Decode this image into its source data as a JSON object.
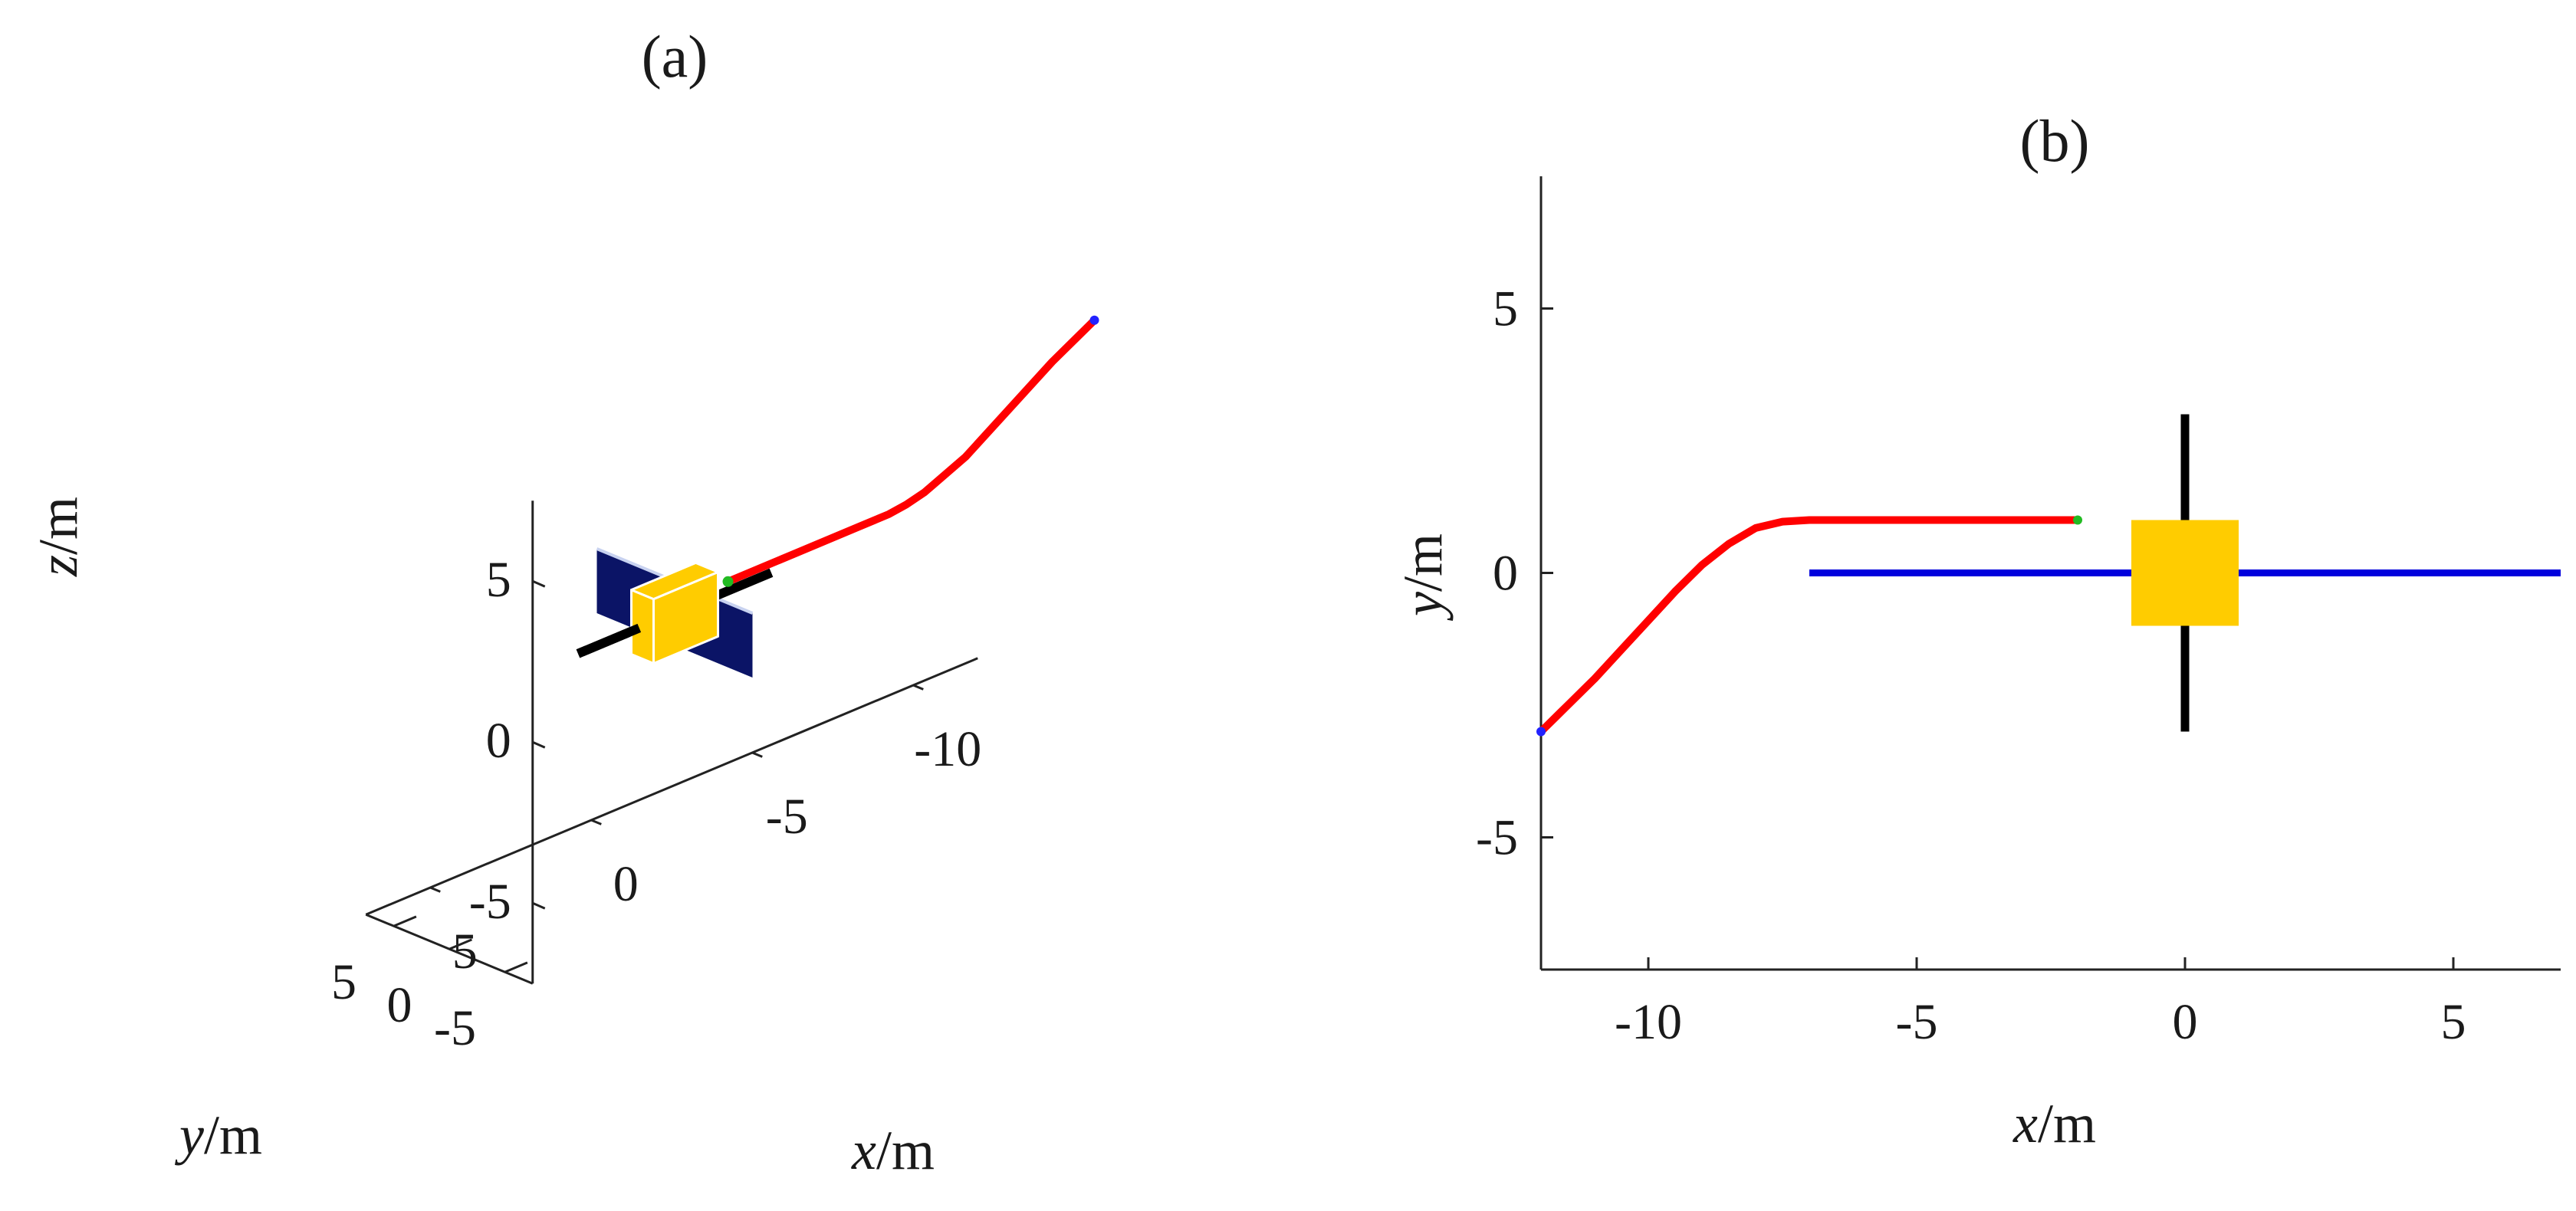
{
  "chart_data": [
    {
      "panel": "(a)",
      "type": "line",
      "view": "3d",
      "xlabel_var": "x",
      "xlabel_unit": "/m",
      "ylabel_var": "y",
      "ylabel_unit": "/m",
      "zlabel_var": "z",
      "zlabel_unit": "/m",
      "xlim": [
        -12,
        7
      ],
      "ylim": [
        -7.5,
        7.5
      ],
      "zlim": [
        -7.5,
        7.5
      ],
      "xticks": [
        {
          "v": 5,
          "label": "5"
        },
        {
          "v": 0,
          "label": "0"
        },
        {
          "v": -5,
          "label": "-5"
        },
        {
          "v": -10,
          "label": "-10"
        }
      ],
      "yticks": [
        {
          "v": -5,
          "label": "-5"
        },
        {
          "v": 0,
          "label": "0"
        },
        {
          "v": 5,
          "label": "5"
        }
      ],
      "zticks": [
        {
          "v": 5,
          "label": "5"
        },
        {
          "v": 0,
          "label": "0"
        },
        {
          "v": -5,
          "label": "-5"
        }
      ],
      "grid": false,
      "colors": {
        "trajectory": "#ff0000",
        "panel": "#0b1466",
        "panel_edge": "#c8d2f0",
        "body": "#ffcc00",
        "body_edge": "#ffffff",
        "boom": "#000000",
        "start_marker": "#2222ff",
        "end_marker": "#22bb22"
      },
      "trajectory": {
        "x": [
          -12,
          -11,
          -10,
          -9,
          -8,
          -7.5,
          -7,
          -6,
          -5,
          -4,
          -3,
          -2
        ],
        "y": [
          -3,
          -2.1,
          -1.1,
          -0.1,
          0.7,
          0.9,
          1,
          1,
          1,
          1,
          1,
          1
        ],
        "z": [
          4.5,
          3.5,
          2.3,
          1.1,
          0.3,
          0.1,
          0,
          0,
          0,
          0,
          0,
          0
        ]
      },
      "spacecraft": {
        "body_half_size": 1,
        "panel_y": [
          -7,
          7
        ],
        "panel_x": 0,
        "panel_z": [
          -1,
          1
        ],
        "boom_x": [
          -3,
          3
        ]
      }
    },
    {
      "panel": "(b)",
      "type": "line",
      "view": "top",
      "xlabel_var": "x",
      "xlabel_unit": "/m",
      "ylabel_var": "y",
      "ylabel_unit": "/m",
      "xlim": [
        -12,
        7
      ],
      "ylim": [
        -7.5,
        7.5
      ],
      "xticks": [
        {
          "v": -10,
          "label": "-10"
        },
        {
          "v": -5,
          "label": "-5"
        },
        {
          "v": 0,
          "label": "0"
        },
        {
          "v": 5,
          "label": "5"
        }
      ],
      "yticks": [
        {
          "v": 5,
          "label": "5"
        },
        {
          "v": 0,
          "label": "0"
        },
        {
          "v": -5,
          "label": "-5"
        }
      ],
      "grid": false,
      "colors": {
        "trajectory": "#ff0000",
        "panel_line": "#0000dd",
        "body": "#ffcc00",
        "boom": "#000000",
        "start_marker": "#2222ff",
        "end_marker": "#22bb22"
      },
      "trajectory": {
        "x": [
          -12,
          -11.5,
          -11,
          -10.5,
          -10,
          -9.5,
          -9,
          -8.5,
          -8,
          -7.5,
          -7,
          -6,
          -5,
          -4,
          -3,
          -2
        ],
        "y": [
          -3,
          -2.5,
          -2.0,
          -1.45,
          -0.9,
          -0.35,
          0.15,
          0.55,
          0.85,
          0.97,
          1,
          1,
          1,
          1,
          1,
          1
        ]
      },
      "spacecraft": {
        "body_x": [
          -1,
          1
        ],
        "body_y": [
          -1,
          1
        ],
        "panel_line_x": [
          -7,
          7
        ],
        "panel_line_y": 0,
        "boom_x": 0,
        "boom_y": [
          -3,
          3
        ]
      }
    }
  ]
}
